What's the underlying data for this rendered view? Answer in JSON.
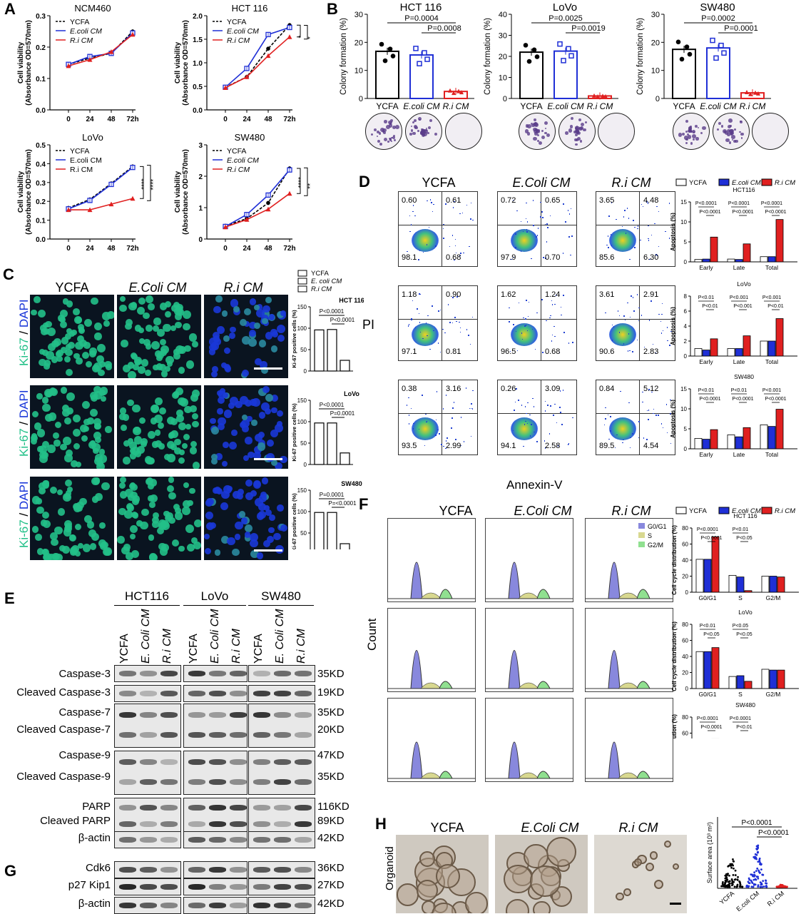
{
  "panels": {
    "A": "A",
    "B": "B",
    "C": "C",
    "D": "D",
    "E": "E",
    "F": "F",
    "G": "G",
    "H": "H"
  },
  "colors": {
    "ycfa": "#000000",
    "ecoli": "#1f2fd6",
    "ri": "#e02020",
    "dapi": "#1a37d8",
    "ki67": "#22c088"
  },
  "panelA": {
    "ylabel": "Cell viability\n(Absorbance OD=570nm)",
    "legend": [
      "YCFA",
      "E.coli CM",
      "R.i CM"
    ],
    "xticks": [
      "0",
      "24",
      "48",
      "72h"
    ],
    "charts": [
      {
        "title": "NCM460",
        "ylim": [
          0,
          0.3
        ],
        "yticks": [
          "0.0",
          "0.1",
          "0.2",
          "0.3"
        ],
        "series": [
          [
            0.145,
            0.165,
            0.18,
            0.25
          ],
          [
            0.145,
            0.17,
            0.18,
            0.245
          ],
          [
            0.14,
            0.16,
            0.185,
            0.24
          ]
        ],
        "sig": []
      },
      {
        "title": "HCT 116",
        "ylim": [
          0,
          2.0
        ],
        "yticks": [
          "0.0",
          "0.5",
          "1.0",
          "1.5",
          "2.0"
        ],
        "series": [
          [
            0.48,
            0.7,
            1.3,
            1.8
          ],
          [
            0.48,
            0.88,
            1.6,
            1.75
          ],
          [
            0.47,
            0.7,
            1.15,
            1.55
          ]
        ],
        "sig": [
          "*",
          "*"
        ]
      },
      {
        "title": "LoVo",
        "ylim": [
          0,
          0.5
        ],
        "yticks": [
          "0.0",
          "0.1",
          "0.2",
          "0.3",
          "0.4",
          "0.5"
        ],
        "series": [
          [
            0.165,
            0.21,
            0.295,
            0.385
          ],
          [
            0.16,
            0.205,
            0.29,
            0.38
          ],
          [
            0.155,
            0.155,
            0.185,
            0.215
          ]
        ],
        "sig": [
          "****",
          "****"
        ]
      },
      {
        "title": "SW480",
        "ylim": [
          0,
          3
        ],
        "yticks": [
          "0",
          "1",
          "2",
          "3"
        ],
        "series": [
          [
            0.42,
            0.65,
            1.15,
            2.25
          ],
          [
            0.4,
            0.78,
            1.4,
            2.2
          ],
          [
            0.38,
            0.62,
            0.95,
            1.45
          ]
        ],
        "sig": [
          "****",
          "**"
        ]
      }
    ]
  },
  "panelB": {
    "ylabel": "Colony formation (%)",
    "categories": [
      "YCFA",
      "E.coli CM",
      "R.i CM"
    ],
    "charts": [
      {
        "title": "HCT 116",
        "ylim": [
          0,
          30
        ],
        "yticks": [
          "0",
          "10",
          "20",
          "30"
        ],
        "values": [
          16.8,
          15.5,
          2.5
        ],
        "p1": "P=0.0004",
        "p2": "P=0.0008"
      },
      {
        "title": "LoVo",
        "ylim": [
          0,
          40
        ],
        "yticks": [
          "0",
          "10",
          "20",
          "30",
          "40"
        ],
        "values": [
          22,
          22.5,
          1.2
        ],
        "p1": "P=0.0025",
        "p2": "P=0.0019"
      },
      {
        "title": "SW480",
        "ylim": [
          0,
          30
        ],
        "yticks": [
          "0",
          "10",
          "20",
          "30"
        ],
        "values": [
          17.5,
          18,
          2
        ],
        "p1": "P=0.0002",
        "p2": "P=0.0001"
      }
    ]
  },
  "panelC": {
    "conds": [
      "YCFA",
      "E.Coli CM",
      "R.i CM"
    ],
    "ylabel_stain": "Ki-67 / DAPI",
    "legend": [
      "YCFA",
      "E. coli CM",
      "R.i CM"
    ],
    "bar_ylabel": "Ki-67 positive cells (%)",
    "charts": [
      {
        "title": "HCT 116",
        "values": [
          96,
          97,
          25
        ],
        "p1": "P<0.0001",
        "p2": "P<0.0001"
      },
      {
        "title": "LoVo",
        "values": [
          97,
          97,
          27
        ],
        "p1": "P<0.0001",
        "p2": "P=0.0001"
      },
      {
        "title": "SW480",
        "values": [
          98,
          98,
          25
        ],
        "p1": "P=0.0001",
        "p2": "P=<0.0001"
      }
    ],
    "yticks": [
      "0",
      "50",
      "100",
      "150"
    ]
  },
  "panelD": {
    "conds": [
      "YCFA",
      "E.Coli CM",
      "R.i CM"
    ],
    "xaxis": "Annexin-V",
    "yaxis": "PI",
    "quadrants": [
      [
        [
          "0.60",
          "0.61",
          "98.1",
          "0.68"
        ],
        [
          "0.72",
          "0.65",
          "97.9",
          "0.70"
        ],
        [
          "3.65",
          "4.48",
          "85.6",
          "6.30"
        ]
      ],
      [
        [
          "1.18",
          "0.90",
          "97.1",
          "0.81"
        ],
        [
          "1.62",
          "1.24",
          "96.5",
          "0.68"
        ],
        [
          "3.61",
          "2.91",
          "90.6",
          "2.83"
        ]
      ],
      [
        [
          "0.38",
          "3.16",
          "93.5",
          "2.99"
        ],
        [
          "0.26",
          "3.09",
          "94.1",
          "2.58"
        ],
        [
          "0.84",
          "5.12",
          "89.5",
          "4.54"
        ]
      ]
    ],
    "legend": [
      "YCFA",
      "E.coli CM",
      "R.i CM"
    ],
    "bar_ylabel": "Apoptosis (%)",
    "categories": [
      "Early",
      "Late",
      "Total"
    ],
    "charts": [
      {
        "title": "HCT116",
        "ylim": [
          0,
          15
        ],
        "yticks": [
          "0",
          "5",
          "10",
          "15"
        ],
        "values": [
          [
            0.6,
            0.7,
            1.3
          ],
          [
            0.7,
            0.6,
            1.3
          ],
          [
            6.2,
            4.5,
            10.6
          ]
        ],
        "pvals": [
          "P<0.0001",
          "P<0.0001",
          "P<0.0001",
          "P<0.0001",
          "P<0.0001",
          "P<0.0001"
        ]
      },
      {
        "title": "LoVo",
        "ylim": [
          0,
          8
        ],
        "yticks": [
          "0",
          "2",
          "4",
          "6",
          "8"
        ],
        "values": [
          [
            1,
            1,
            2
          ],
          [
            0.8,
            1,
            2
          ],
          [
            2.3,
            2.7,
            5
          ]
        ],
        "pvals": [
          "P<0.01",
          "P<0.01",
          "P<0.001",
          "P<0.001",
          "P<0.001",
          "P<0.01"
        ]
      },
      {
        "title": "SW480",
        "ylim": [
          0,
          15
        ],
        "yticks": [
          "0",
          "5",
          "10",
          "15"
        ],
        "values": [
          [
            2.6,
            3.5,
            6
          ],
          [
            2.4,
            3,
            5.6
          ],
          [
            4.8,
            5.3,
            9.9
          ]
        ],
        "pvals": [
          "P<0.01",
          "P<0.0001",
          "P<0.01",
          "P<0.0001",
          "P<0.001",
          "P<0.0001"
        ]
      }
    ]
  },
  "panelE": {
    "groups": [
      "HCT116",
      "LoVo",
      "SW480"
    ],
    "lanes": [
      "YCFA",
      "E. Coli CM",
      "R.i CM"
    ],
    "rows": [
      {
        "label": "Caspase-3",
        "kd": "35KD"
      },
      {
        "label": "Cleaved Caspase-3",
        "kd": "19KD"
      },
      {
        "label": "Caspase-7",
        "kd": "35KD"
      },
      {
        "label": "Cleaved Caspase-7",
        "kd": "20KD"
      },
      {
        "label": "Caspase-9",
        "kd": "47KD"
      },
      {
        "label": "Cleaved Caspase-9",
        "kd": "35KD"
      },
      {
        "label": "PARP",
        "kd": "116KD"
      },
      {
        "label": "Cleaved PARP",
        "kd": "89KD"
      },
      {
        "label": "β-actin",
        "kd": "42KD"
      }
    ]
  },
  "panelG": {
    "rows": [
      {
        "label": "Cdk6",
        "kd": "36KD"
      },
      {
        "label": "p27 Kip1",
        "kd": "27KD"
      },
      {
        "label": "β-actin",
        "kd": "42KD"
      }
    ]
  },
  "panelF": {
    "conds": [
      "YCFA",
      "E.Coli CM",
      "R.i CM"
    ],
    "xaxis": "PI",
    "yaxis": "Count",
    "phase_legend": [
      "G0/G1",
      "S",
      "G2/M"
    ],
    "legend": [
      "YCFA",
      "E.coli CM",
      "R.i CM"
    ],
    "bar_ylabel": "Cell cycle distribution (%)",
    "categories": [
      "G0/G1",
      "S",
      "G2/M"
    ],
    "yticks": [
      "0",
      "20",
      "40",
      "60",
      "80"
    ],
    "charts": [
      {
        "title": "HCT 116",
        "values": [
          [
            41,
            21,
            20
          ],
          [
            41,
            19,
            20
          ],
          [
            69,
            2,
            19
          ]
        ],
        "pvals": [
          "P<0.0001",
          "P<0.0001",
          "P<0.01",
          "P<0.05"
        ]
      },
      {
        "title": "LoVo",
        "values": [
          [
            46,
            15,
            24
          ],
          [
            46,
            16,
            23
          ],
          [
            51,
            9,
            23
          ]
        ],
        "pvals": [
          "P<0.01",
          "P<0.05",
          "P<0.05",
          "P<0.05"
        ]
      },
      {
        "title": "SW480",
        "values": [
          [
            41,
            14,
            26
          ],
          [
            41,
            15,
            25
          ],
          [
            53,
            1,
            25
          ]
        ],
        "pvals": [
          "P<0.0001",
          "P<0.0001",
          "P<0.0001",
          "P<0.01"
        ]
      }
    ]
  },
  "panelH": {
    "conds": [
      "YCFA",
      "E.Coli CM",
      "R.i CM"
    ],
    "side_label": "Organoid",
    "ylabel": "Surface area (10³ m²)",
    "categories": [
      "YCFA",
      "E.coli CM",
      "R.i CM"
    ],
    "p1": "P<0.0001",
    "p2": "P<0.0001"
  }
}
